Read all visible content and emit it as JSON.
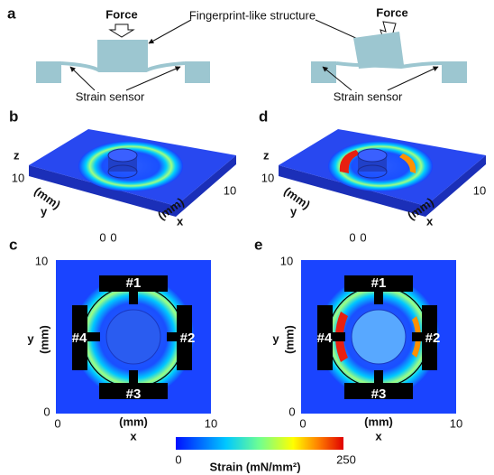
{
  "panels": {
    "a": {
      "label": "a",
      "annotation": "Fingerprint-like structure",
      "left": {
        "force": "Force",
        "sensor": "Strain sensor"
      },
      "right": {
        "force": "Force",
        "sensor": "Strain sensor"
      }
    },
    "b": {
      "label": "b",
      "z": "z",
      "y": "y",
      "x": "x",
      "y_unit": "(mm)",
      "x_unit": "(mm)",
      "y_max": 10,
      "x_max": 10,
      "y_min": 0,
      "x_min": 0
    },
    "d": {
      "label": "d",
      "z": "z",
      "y": "y",
      "x": "x",
      "y_unit": "(mm)",
      "x_unit": "(mm)",
      "y_max": 10,
      "x_max": 10,
      "y_min": 0,
      "x_min": 0
    },
    "c": {
      "label": "c",
      "sensors": [
        "#1",
        "#2",
        "#3",
        "#4"
      ],
      "y": "y",
      "x": "x",
      "y_unit": "(mm)",
      "x_unit": "(mm)",
      "y_max": 10,
      "y_min": 0,
      "x_min": 0,
      "x_max": 10
    },
    "e": {
      "label": "e",
      "sensors": [
        "#1",
        "#2",
        "#3",
        "#4"
      ],
      "y": "y",
      "x": "x",
      "y_unit": "(mm)",
      "x_unit": "(mm)",
      "y_max": 10,
      "y_min": 0,
      "x_min": 0,
      "x_max": 10
    }
  },
  "colorbar": {
    "min": 0,
    "max": 250,
    "label": "Strain (mN/mm²)"
  }
}
